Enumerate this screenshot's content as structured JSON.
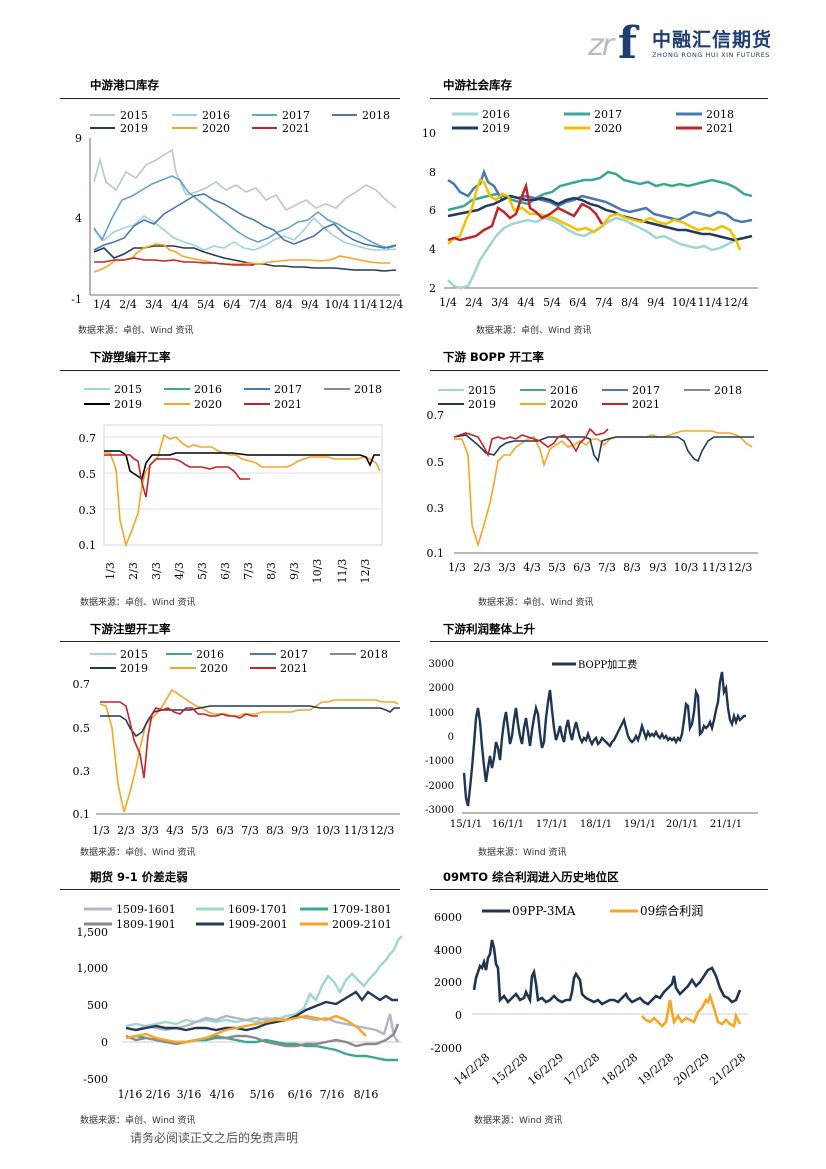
{
  "header": {
    "logo_mark": "zr",
    "logo_f": "f",
    "company_cn": "中融汇信期货",
    "company_en": "ZHONG RONG HUI XIN FUTURES"
  },
  "colors": {
    "y2015": "#b7c6dc",
    "y2016": "#9fd6d2",
    "y2017": "#63a4c7",
    "y2018": "#4a78b0",
    "y2019": "#223b58",
    "y2020": "#f5a623",
    "y2021": "#c0252a",
    "teal": "#3aa795",
    "grey": "#8a8a8a",
    "navy": "#1f3552"
  },
  "charts": [
    {
      "id": "port",
      "title": "中游港口库存",
      "source": "数据来源：卓创、Wind 资讯",
      "legend": [
        "2015",
        "2016",
        "2017",
        "2018",
        "2019",
        "2020",
        "2021"
      ],
      "yticks": [
        "9",
        "4",
        "-1"
      ],
      "xticks": [
        "1/4",
        "2/4",
        "3/4",
        "4/4",
        "5/4",
        "6/4",
        "7/4",
        "8/4",
        "9/4",
        "10/4",
        "11/4",
        "12/4"
      ]
    },
    {
      "id": "social",
      "title": "中游社会库存",
      "source": "数据来源：卓创、Wind 资讯",
      "legend": [
        "2016",
        "2017",
        "2018",
        "2019",
        "2020",
        "2021"
      ],
      "yticks": [
        "10",
        "8",
        "6",
        "4",
        "2"
      ],
      "xticks": [
        "1/4",
        "2/4",
        "3/4",
        "4/4",
        "5/4",
        "6/4",
        "7/4",
        "8/4",
        "9/4",
        "10/4",
        "11/4",
        "12/4"
      ]
    },
    {
      "id": "weave",
      "title": "下游塑编开工率",
      "source": "数据来源：卓创、Wind 资讯",
      "legend": [
        "2015",
        "2016",
        "2017",
        "2018",
        "2019",
        "2020",
        "2021"
      ],
      "yticks": [
        "0.7",
        "0.5",
        "0.3",
        "0.1"
      ],
      "xticks": [
        "1/3",
        "2/3",
        "3/3",
        "4/3",
        "5/3",
        "6/3",
        "7/3",
        "8/3",
        "9/3",
        "10/3",
        "11/3",
        "12/3"
      ]
    },
    {
      "id": "bopp",
      "title": "下游 BOPP 开工率",
      "source": "数据来源：卓创、Wind 资讯",
      "legend": [
        "2015",
        "2016",
        "2017",
        "2018",
        "2019",
        "2020",
        "2021"
      ],
      "yticks": [
        "0.7",
        "0.5",
        "0.3",
        "0.1"
      ],
      "xticks": [
        "1/3",
        "2/3",
        "3/3",
        "4/3",
        "5/3",
        "6/3",
        "7/3",
        "8/3",
        "9/3",
        "10/3",
        "11/3",
        "12/3"
      ]
    },
    {
      "id": "inject",
      "title": "下游注塑开工率",
      "source": "数据来源：卓创、Wind 资讯",
      "legend": [
        "2015",
        "2016",
        "2017",
        "2018",
        "2019",
        "2020",
        "2021"
      ],
      "yticks": [
        "0.7",
        "0.5",
        "0.3",
        "0.1"
      ],
      "xticks": [
        "1/3",
        "2/3",
        "3/3",
        "4/3",
        "5/3",
        "6/3",
        "7/3",
        "8/3",
        "9/3",
        "10/3",
        "11/3",
        "12/3"
      ]
    },
    {
      "id": "profit",
      "title": "下游利润整体上升",
      "source": "数据来源：Wind 资讯",
      "legend": [
        "BOPP加工费"
      ],
      "yticks": [
        "3000",
        "2000",
        "1000",
        "0",
        "-1000",
        "-2000",
        "-3000"
      ],
      "xticks": [
        "15/1/1",
        "16/1/1",
        "17/1/1",
        "18/1/1",
        "19/1/1",
        "20/1/1",
        "21/1/1"
      ]
    },
    {
      "id": "spread",
      "title": "期货 9-1 价差走弱",
      "source": "数据来源：卓创、Wind 资讯",
      "legend": [
        "1509-1601",
        "1609-1701",
        "1709-1801",
        "1809-1901",
        "1909-2001",
        "2009-2101"
      ],
      "yticks": [
        "1,500",
        "1,000",
        "500",
        "0",
        "-500"
      ],
      "xticks": [
        "1/16",
        "2/16",
        "3/16",
        "4/16",
        "5/16",
        "6/16",
        "7/16",
        "8/16"
      ]
    },
    {
      "id": "mto",
      "title": "09MTO 综合利润进入历史地位区",
      "source": "数据来源：Wind 资讯",
      "legend": [
        "09PP-3MA",
        "09综合利润"
      ],
      "yticks": [
        "6000",
        "4000",
        "2000",
        "0",
        "-2000"
      ],
      "xticks": [
        "14/2/28",
        "15/2/28",
        "16/2/29",
        "17/2/28",
        "18/2/28",
        "19/2/28",
        "20/2/29",
        "21/2/28"
      ]
    }
  ],
  "footer": {
    "disclaimer": "请务必阅读正文之后的免责声明",
    "page": ""
  }
}
